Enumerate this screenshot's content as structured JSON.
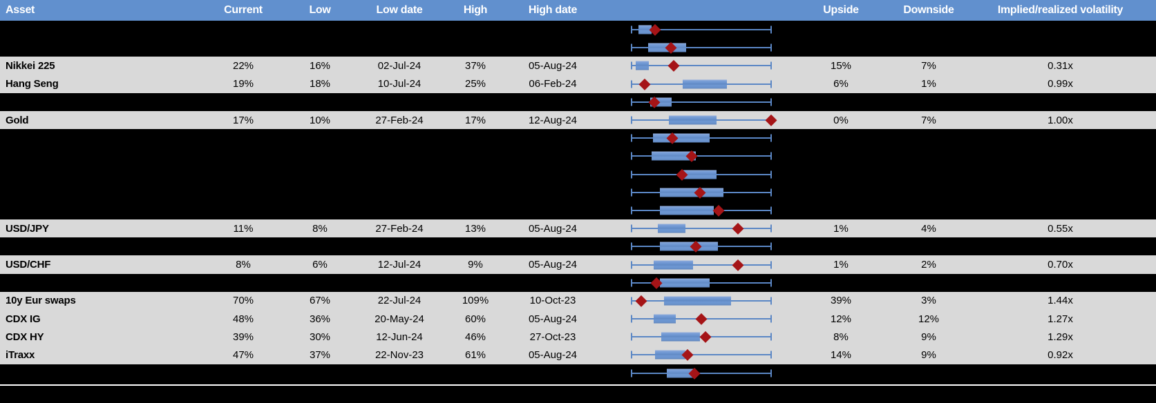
{
  "colors": {
    "header_bg": "#6190ce",
    "header_text": "#ffffff",
    "row_gray": "#d9d9d9",
    "row_black": "#000000",
    "box_fill": "#6e97d3",
    "whisker": "#5b87c5",
    "diamond": "#a51417",
    "separator": "#ffffff"
  },
  "columns": [
    {
      "key": "asset",
      "label": "Asset"
    },
    {
      "key": "current",
      "label": "Current"
    },
    {
      "key": "low",
      "label": "Low"
    },
    {
      "key": "low_date",
      "label": "Low date"
    },
    {
      "key": "high",
      "label": "High"
    },
    {
      "key": "high_date",
      "label": "High date"
    },
    {
      "key": "upside",
      "label": "Upside"
    },
    {
      "key": "downside",
      "label": "Downside"
    },
    {
      "key": "implied",
      "label": "Implied/realized volatility"
    }
  ],
  "rows": [
    {
      "type": "redacted",
      "plot": {
        "box_lo": 5.4,
        "box_hi": 14.7,
        "marker": 17.2
      }
    },
    {
      "type": "redacted",
      "plot": {
        "box_lo": 12.3,
        "box_hi": 39.2,
        "marker": 28.4
      }
    },
    {
      "type": "data",
      "asset": "Nikkei 225",
      "current": "22%",
      "low": "16%",
      "low_date": "02-Jul-24",
      "high": "37%",
      "high_date": "05-Aug-24",
      "upside": "15%",
      "downside": "7%",
      "implied": "0.31x",
      "plot": {
        "box_lo": 3.4,
        "box_hi": 12.7,
        "marker": 30.4
      }
    },
    {
      "type": "data",
      "asset": "Hang Seng",
      "current": "19%",
      "low": "18%",
      "low_date": "10-Jul-24",
      "high": "25%",
      "high_date": "06-Feb-24",
      "upside": "6%",
      "downside": "1%",
      "implied": "0.99x",
      "plot": {
        "box_lo": 36.8,
        "box_hi": 68.1,
        "marker": 9.8
      }
    },
    {
      "type": "redacted",
      "plot": {
        "box_lo": 13.7,
        "box_hi": 28.9,
        "marker": 16.7
      }
    },
    {
      "type": "data",
      "asset": "Gold",
      "current": "17%",
      "low": "10%",
      "low_date": "27-Feb-24",
      "high": "17%",
      "high_date": "12-Aug-24",
      "upside": "0%",
      "downside": "7%",
      "implied": "1.00x",
      "plot": {
        "box_lo": 27.0,
        "box_hi": 60.8,
        "marker": 99.5
      }
    },
    {
      "type": "redacted",
      "plot": {
        "box_lo": 15.7,
        "box_hi": 55.9,
        "marker": 29.4
      }
    },
    {
      "type": "redacted",
      "plot": {
        "box_lo": 14.7,
        "box_hi": 46.1,
        "marker": 43.1
      }
    },
    {
      "type": "redacted",
      "plot": {
        "box_lo": 35.8,
        "box_hi": 60.8,
        "marker": 36.3
      }
    },
    {
      "type": "redacted",
      "plot": {
        "box_lo": 20.6,
        "box_hi": 65.7,
        "marker": 49.0
      }
    },
    {
      "type": "redacted",
      "plot": {
        "box_lo": 20.6,
        "box_hi": 58.8,
        "marker": 62.3
      }
    },
    {
      "type": "data",
      "asset": "USD/JPY",
      "current": "11%",
      "low": "8%",
      "low_date": "27-Feb-24",
      "high": "13%",
      "high_date": "05-Aug-24",
      "upside": "1%",
      "downside": "4%",
      "implied": "0.55x",
      "plot": {
        "box_lo": 19.1,
        "box_hi": 38.7,
        "marker": 76.0
      }
    },
    {
      "type": "redacted",
      "plot": {
        "box_lo": 20.6,
        "box_hi": 61.8,
        "marker": 46.1
      }
    },
    {
      "type": "data",
      "asset": "USD/CHF",
      "current": "8%",
      "low": "6%",
      "low_date": "12-Jul-24",
      "high": "9%",
      "high_date": "05-Aug-24",
      "upside": "1%",
      "downside": "2%",
      "implied": "0.70x",
      "plot": {
        "box_lo": 16.2,
        "box_hi": 44.1,
        "marker": 76.0
      }
    },
    {
      "type": "redacted",
      "plot": {
        "box_lo": 20.6,
        "box_hi": 55.9,
        "marker": 18.1
      }
    },
    {
      "type": "data",
      "asset": "10y Eur swaps",
      "current": "70%",
      "low": "67%",
      "low_date": "22-Jul-24",
      "high": "109%",
      "high_date": "10-Oct-23",
      "upside": "39%",
      "downside": "3%",
      "implied": "1.44x",
      "plot": {
        "box_lo": 23.5,
        "box_hi": 71.1,
        "marker": 7.4
      }
    },
    {
      "type": "data",
      "asset": "CDX IG",
      "current": "48%",
      "low": "36%",
      "low_date": "20-May-24",
      "high": "60%",
      "high_date": "05-Aug-24",
      "upside": "12%",
      "downside": "12%",
      "implied": "1.27x",
      "plot": {
        "box_lo": 16.2,
        "box_hi": 31.9,
        "marker": 50.0
      }
    },
    {
      "type": "data",
      "asset": "CDX HY",
      "current": "39%",
      "low": "30%",
      "low_date": "12-Jun-24",
      "high": "46%",
      "high_date": "27-Oct-23",
      "upside": "8%",
      "downside": "9%",
      "implied": "1.29x",
      "plot": {
        "box_lo": 21.6,
        "box_hi": 49.0,
        "marker": 52.9
      }
    },
    {
      "type": "data",
      "asset": "iTraxx",
      "current": "47%",
      "low": "37%",
      "low_date": "22-Nov-23",
      "high": "61%",
      "high_date": "05-Aug-24",
      "upside": "14%",
      "downside": "9%",
      "implied": "0.92x",
      "plot": {
        "box_lo": 17.2,
        "box_hi": 38.7,
        "marker": 40.2
      }
    },
    {
      "type": "redacted",
      "plot": {
        "box_lo": 25.5,
        "box_hi": 46.1,
        "marker": 45.1
      }
    }
  ],
  "chart_data": {
    "type": "boxplot",
    "orientation": "horizontal",
    "note": "Each row shows a min-max whisker (0 to 100, normalized to that asset's low/high range), an inner box (box_lo to box_hi) and a dark-red diamond marker at 'marker' (current level). Values listed in rows[].plot.",
    "whisker_range": [
      0,
      100
    ]
  }
}
